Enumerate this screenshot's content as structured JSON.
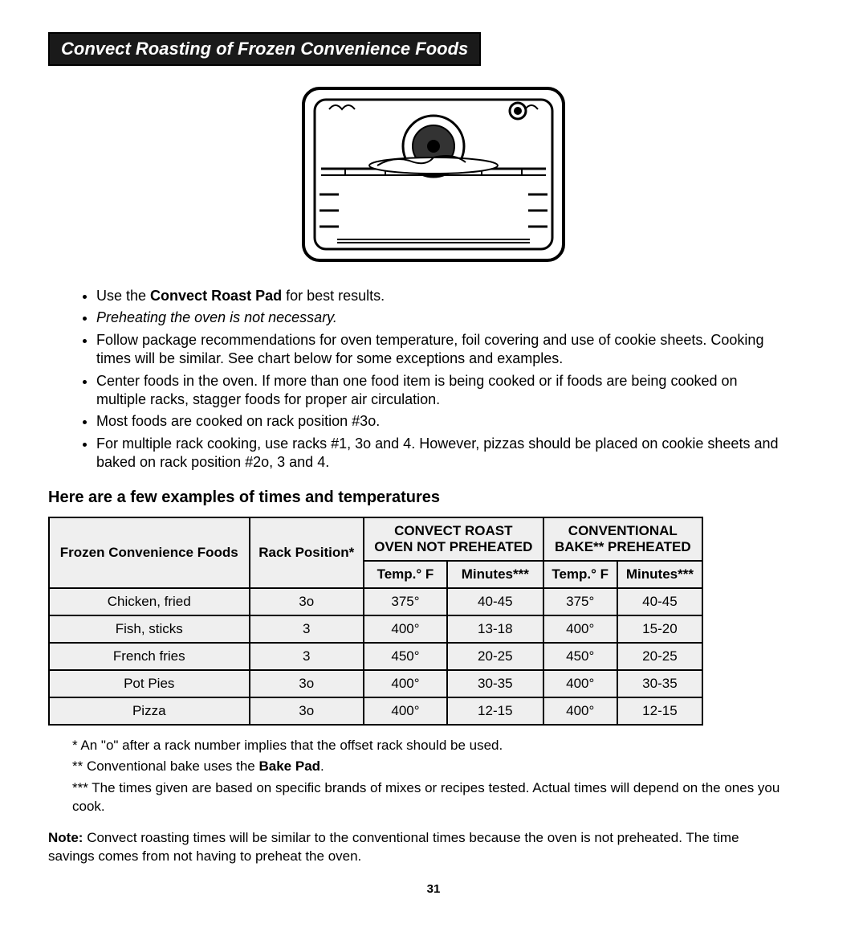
{
  "title": "Convect Roasting of Frozen Convenience Foods",
  "bullets": [
    {
      "html": "Use the <b>Convect Roast Pad</b> for best results."
    },
    {
      "html": "<i>Preheating the oven is not necessary.</i>"
    },
    {
      "html": "Follow package recommendations for oven temperature, foil covering and use of cookie sheets. Cooking times will be similar. See chart below for some exceptions and examples."
    },
    {
      "html": "Center foods in the oven. If more than one food item is being cooked or if foods are being cooked on multiple racks, stagger foods for proper air circulation."
    },
    {
      "html": "Most foods are cooked on rack position #3o."
    },
    {
      "html": "For multiple rack cooking, use racks #1, 3o and 4. However, pizzas should be placed on cookie sheets and baked on rack position #2o, 3 and 4."
    }
  ],
  "section_heading": "Here are a few examples of times and temperatures",
  "table": {
    "header_group_1": "CONVECT ROAST",
    "header_group_1b": "OVEN NOT PREHEATED",
    "header_group_2": "CONVENTIONAL",
    "header_group_2b": "BAKE** PREHEATED",
    "col_food": "Frozen Convenience Foods",
    "col_rack": "Rack Position*",
    "col_temp": "Temp.° F",
    "col_min": "Minutes***",
    "rows": [
      {
        "food": "Chicken, fried",
        "rack": "3o",
        "ct": "375°",
        "cm": "40-45",
        "bt": "375°",
        "bm": "40-45"
      },
      {
        "food": "Fish, sticks",
        "rack": "3",
        "ct": "400°",
        "cm": "13-18",
        "bt": "400°",
        "bm": "15-20"
      },
      {
        "food": "French fries",
        "rack": "3",
        "ct": "450°",
        "cm": "20-25",
        "bt": "450°",
        "bm": "20-25"
      },
      {
        "food": "Pot Pies",
        "rack": "3o",
        "ct": "400°",
        "cm": "30-35",
        "bt": "400°",
        "bm": "30-35"
      },
      {
        "food": "Pizza",
        "rack": "3o",
        "ct": "400°",
        "cm": "12-15",
        "bt": "400°",
        "bm": "12-15"
      }
    ]
  },
  "footnotes": [
    {
      "mark": "*",
      "text": "An \"o\" after a rack number implies that the offset rack should be used."
    },
    {
      "mark": "**",
      "html": "Conventional bake uses the <b>Bake Pad</b>."
    },
    {
      "mark": "***",
      "text": "The times given are based on specific brands of mixes or recipes tested. Actual times will depend on the ones you cook."
    }
  ],
  "note_label": "Note:",
  "note_text": "Convect roasting times will be similar to the conventional times because the oven is not preheated. The time savings comes from not having to preheat the oven.",
  "page_number": "31"
}
